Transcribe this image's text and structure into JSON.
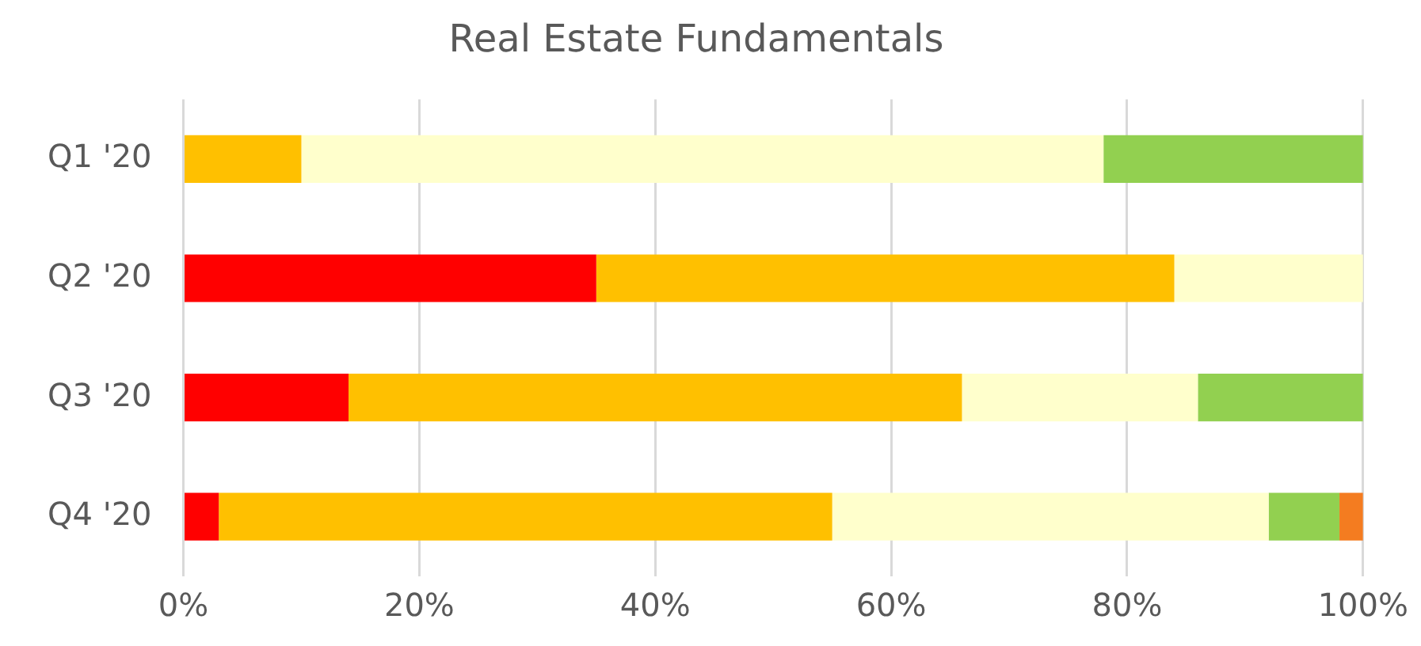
{
  "chart_data": {
    "type": "bar",
    "orientation": "horizontal",
    "stacked": true,
    "title": "Real Estate Fundamentals",
    "categories": [
      "Q1 '20",
      "Q2 '20",
      "Q3 '20",
      "Q4 '20"
    ],
    "series": [
      {
        "color": "#ff0000",
        "values": [
          0,
          35,
          14,
          3
        ]
      },
      {
        "color": "#ffc000",
        "values": [
          10,
          49,
          52,
          52
        ]
      },
      {
        "color": "#ffffcc",
        "values": [
          68,
          16,
          20,
          37
        ]
      },
      {
        "color": "#92d050",
        "values": [
          22,
          0,
          14,
          6
        ]
      },
      {
        "color": "#f47c20",
        "values": [
          0,
          0,
          0,
          2
        ]
      }
    ],
    "xlim": [
      0,
      100
    ],
    "xticks": [
      {
        "value": 0,
        "label": "0%"
      },
      {
        "value": 20,
        "label": "20%"
      },
      {
        "value": 40,
        "label": "40%"
      },
      {
        "value": 60,
        "label": "60%"
      },
      {
        "value": 80,
        "label": "80%"
      },
      {
        "value": 100,
        "label": "100%"
      }
    ],
    "grid": "x",
    "legend": false
  }
}
